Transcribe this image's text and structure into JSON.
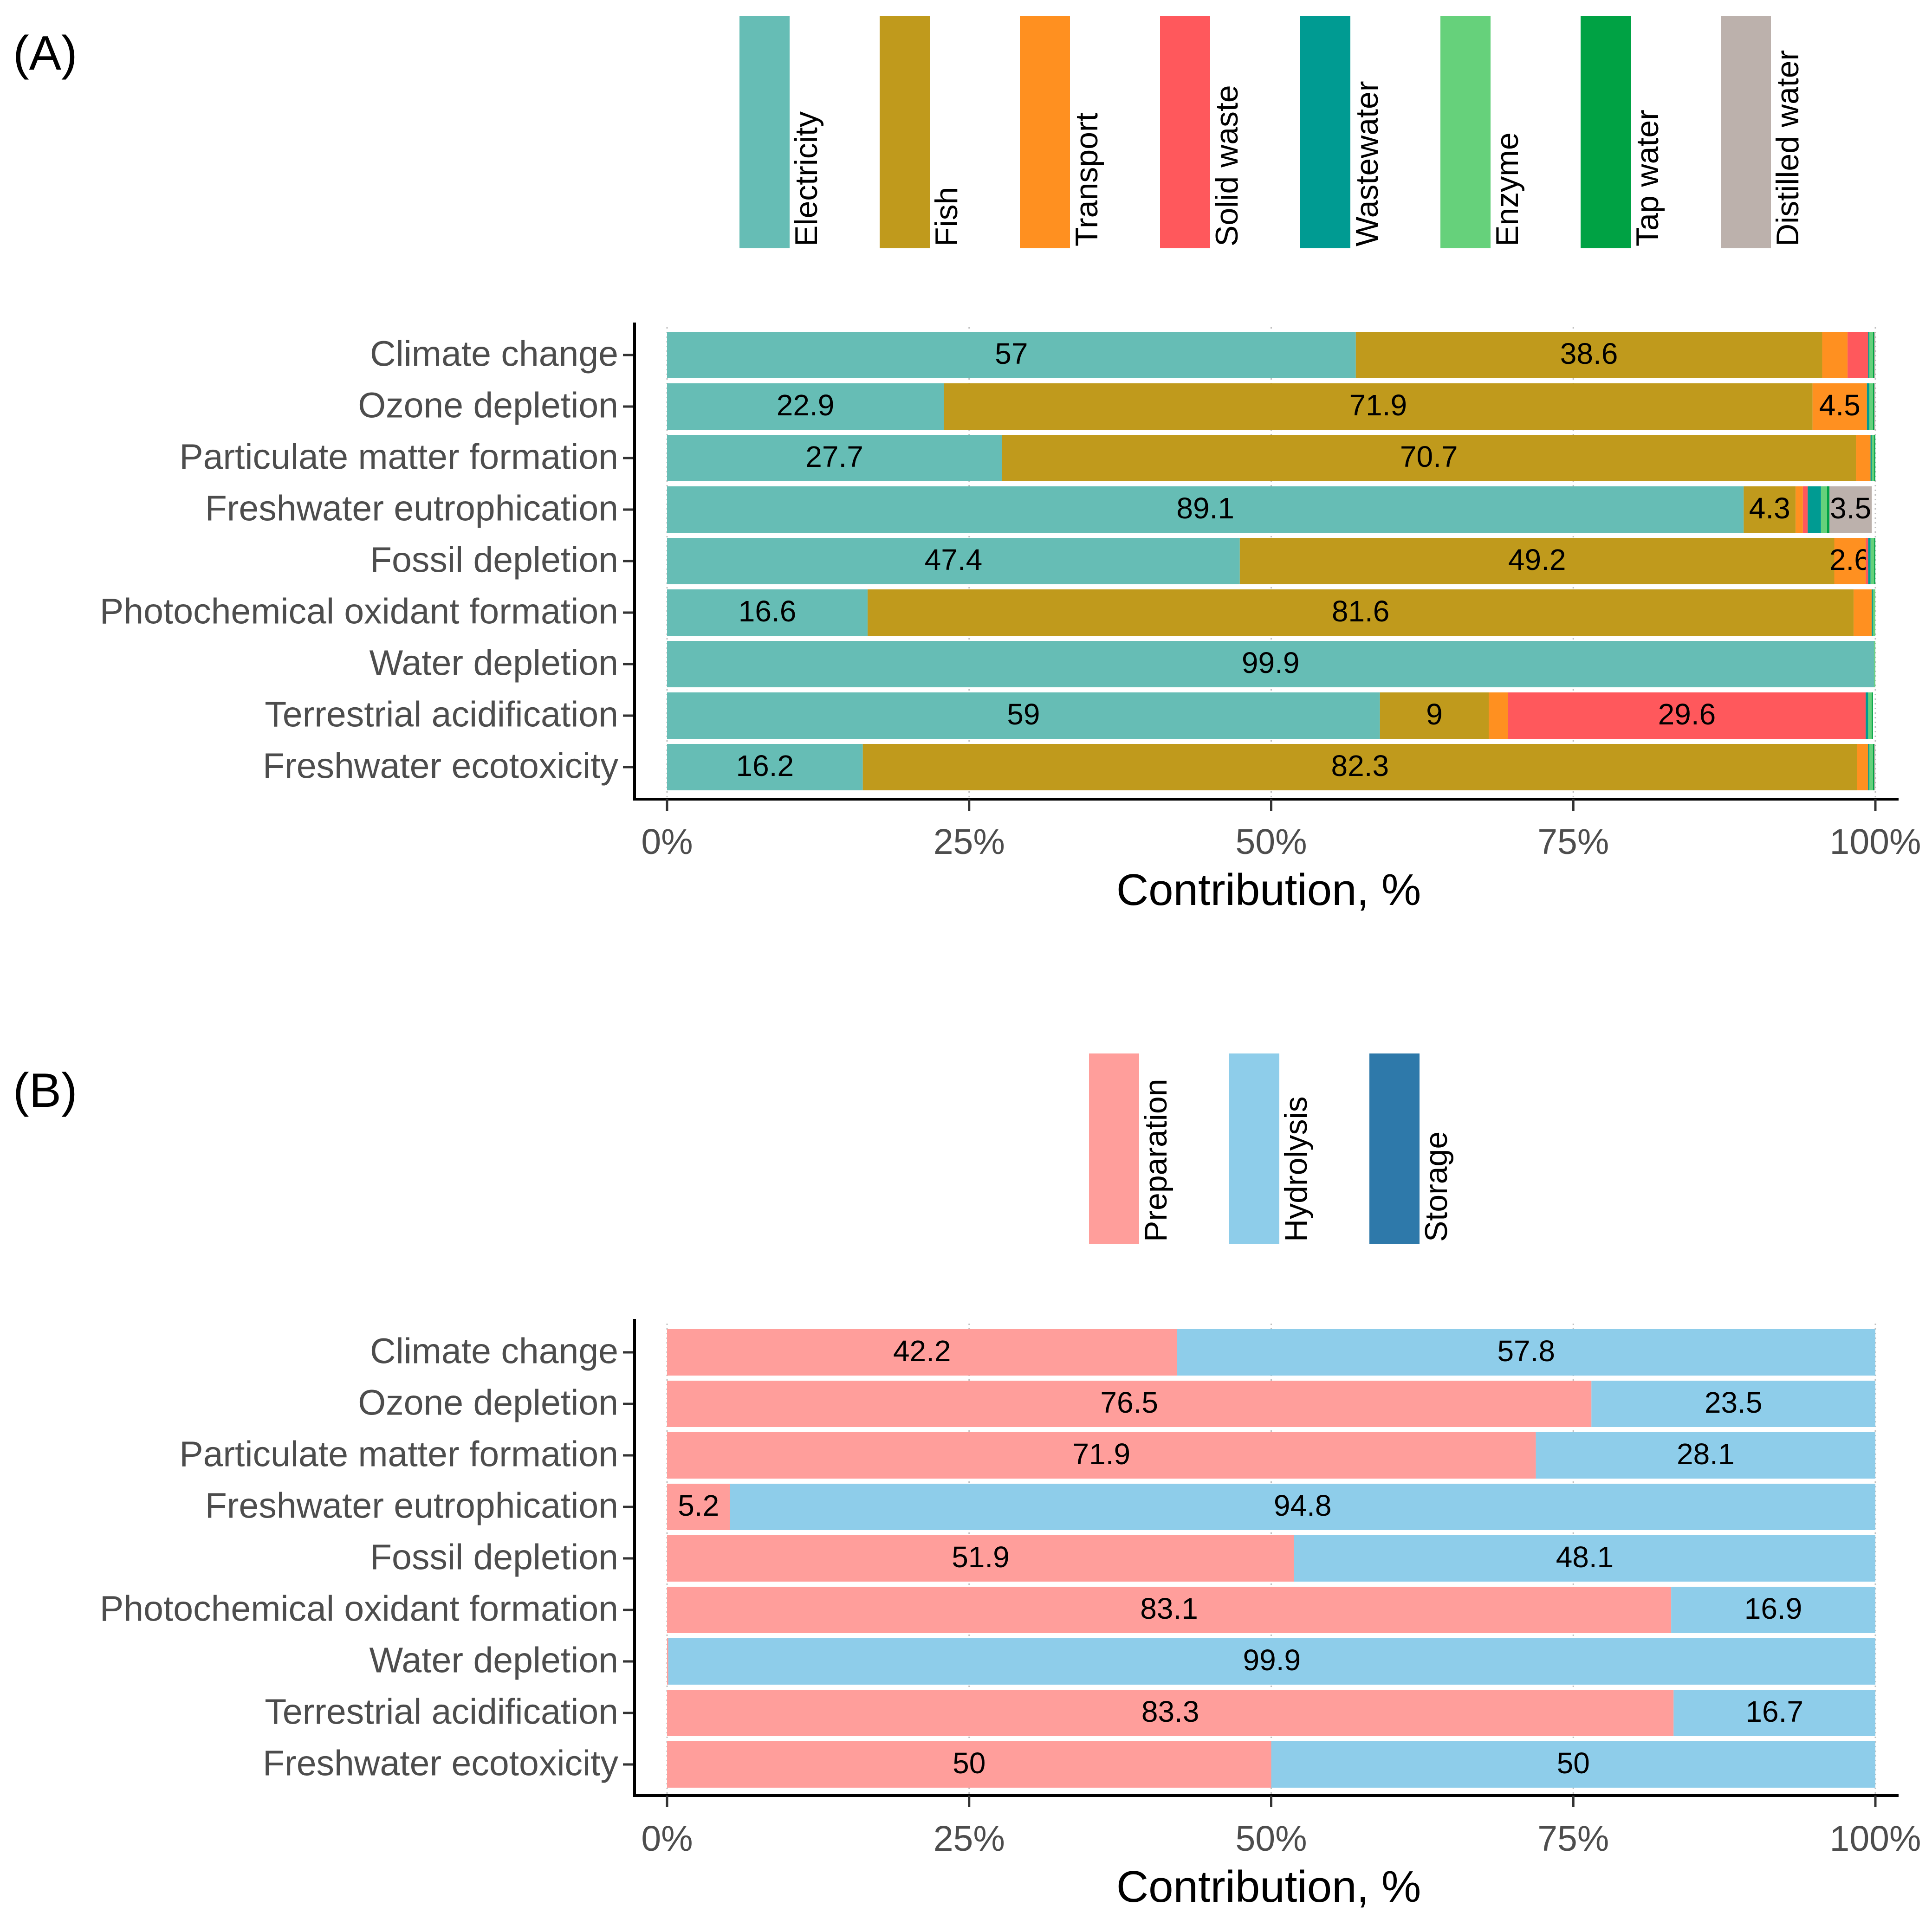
{
  "chart_data": [
    {
      "panel_label": "(A)",
      "type": "bar",
      "orientation": "horizontal",
      "stacked": true,
      "categories": [
        "Climate change",
        "Ozone depletion",
        "Particulate matter formation",
        "Freshwater eutrophication",
        "Fossil depletion",
        "Photochemical oxidant formation",
        "Water depletion",
        "Terrestrial acidification",
        "Freshwater ecotoxicity"
      ],
      "series": [
        {
          "name": "Electricity",
          "color": "#66BDB5",
          "values": [
            57,
            22.9,
            27.7,
            89.1,
            47.4,
            16.6,
            99.9,
            59,
            16.2
          ]
        },
        {
          "name": "Fish",
          "color": "#C09A1C",
          "values": [
            38.6,
            71.9,
            70.7,
            4.3,
            49.2,
            81.6,
            0,
            9,
            82.3
          ]
        },
        {
          "name": "Transport",
          "color": "#FF9020",
          "values": [
            2.1,
            4.5,
            1.2,
            0.6,
            2.6,
            1.5,
            0,
            1.6,
            0.9
          ]
        },
        {
          "name": "Solid waste",
          "color": "#FF585C",
          "values": [
            1.7,
            0,
            0,
            0.4,
            0.2,
            0,
            0,
            29.6,
            0
          ]
        },
        {
          "name": "Wastewater",
          "color": "#009B92",
          "values": [
            0.1,
            0.2,
            0.1,
            1.1,
            0.2,
            0.1,
            0,
            0.2,
            0.1
          ]
        },
        {
          "name": "Enzyme",
          "color": "#66D17B",
          "values": [
            0.3,
            0.3,
            0.2,
            0.5,
            0.3,
            0.2,
            0.1,
            0.3,
            0.3
          ]
        },
        {
          "name": "Tap water",
          "color": "#00A244",
          "values": [
            0.1,
            0.1,
            0.1,
            0.2,
            0.1,
            0,
            0,
            0.1,
            0.1
          ]
        },
        {
          "name": "Distilled water",
          "color": "#BCB1AC",
          "values": [
            0.1,
            0.1,
            0,
            3.5,
            0,
            0,
            0,
            0,
            0.1
          ]
        }
      ],
      "data_labels": [
        [
          "57",
          "38.6",
          "",
          "",
          "",
          "",
          "",
          ""
        ],
        [
          "22.9",
          "71.9",
          "4.5",
          "",
          "",
          "",
          "",
          ""
        ],
        [
          "27.7",
          "70.7",
          "",
          "",
          "",
          "",
          "",
          ""
        ],
        [
          "89.1",
          "4.3",
          "",
          "",
          "",
          "",
          "",
          "3.5"
        ],
        [
          "47.4",
          "49.2",
          "2.6",
          "",
          "",
          "",
          "",
          ""
        ],
        [
          "16.6",
          "81.6",
          "",
          "",
          "",
          "",
          "",
          ""
        ],
        [
          "99.9",
          "",
          "",
          "",
          "",
          "",
          "",
          ""
        ],
        [
          "59",
          "9",
          "",
          "29.6",
          "",
          "",
          "",
          ""
        ],
        [
          "16.2",
          "82.3",
          "",
          "",
          "",
          "",
          "",
          ""
        ]
      ],
      "xlabel": "Contribution, %",
      "xlim": [
        0,
        100
      ],
      "xticks": [
        0,
        25,
        50,
        75,
        100
      ],
      "xtick_labels": [
        "0%",
        "25%",
        "50%",
        "75%",
        "100%"
      ],
      "legend_position": "top"
    },
    {
      "panel_label": "(B)",
      "type": "bar",
      "orientation": "horizontal",
      "stacked": true,
      "categories": [
        "Climate change",
        "Ozone depletion",
        "Particulate matter formation",
        "Freshwater eutrophication",
        "Fossil depletion",
        "Photochemical oxidant formation",
        "Water depletion",
        "Terrestrial acidification",
        "Freshwater ecotoxicity"
      ],
      "series": [
        {
          "name": "Preparation",
          "color": "#FF9E9B",
          "values": [
            42.2,
            76.5,
            71.9,
            5.2,
            51.9,
            83.1,
            0.1,
            83.3,
            50
          ]
        },
        {
          "name": "Hydrolysis",
          "color": "#8ECDEA",
          "values": [
            57.8,
            23.5,
            28.1,
            94.8,
            48.1,
            16.9,
            99.9,
            16.7,
            50
          ]
        },
        {
          "name": "Storage",
          "color": "#2E79AA",
          "values": [
            0,
            0,
            0,
            0,
            0,
            0,
            0,
            0,
            0
          ]
        }
      ],
      "data_labels": [
        [
          "42.2",
          "57.8",
          ""
        ],
        [
          "76.5",
          "23.5",
          ""
        ],
        [
          "71.9",
          "28.1",
          ""
        ],
        [
          "5.2",
          "94.8",
          ""
        ],
        [
          "51.9",
          "48.1",
          ""
        ],
        [
          "83.1",
          "16.9",
          ""
        ],
        [
          "",
          "99.9",
          ""
        ],
        [
          "83.3",
          "16.7",
          ""
        ],
        [
          "50",
          "50",
          ""
        ]
      ],
      "xlabel": "Contribution, %",
      "xlim": [
        0,
        100
      ],
      "xticks": [
        0,
        25,
        50,
        75,
        100
      ],
      "xtick_labels": [
        "0%",
        "25%",
        "50%",
        "75%",
        "100%"
      ],
      "legend_position": "top"
    }
  ]
}
